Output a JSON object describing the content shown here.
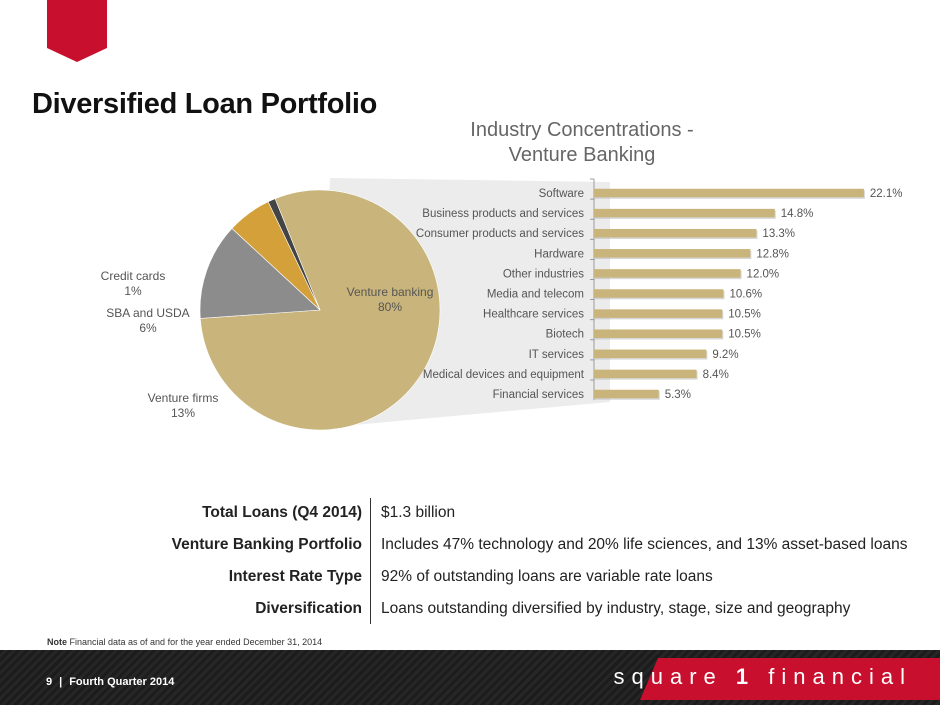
{
  "page": {
    "title": "Diversified Loan Portfolio",
    "accent_color": "#c8102e"
  },
  "chart_data": [
    {
      "type": "pie",
      "title": "",
      "slices": [
        {
          "name": "Venture banking",
          "label": "80%",
          "value": 80,
          "color": "#c9b57b"
        },
        {
          "name": "Venture firms",
          "label": "13%",
          "value": 13,
          "color": "#8c8c8c"
        },
        {
          "name": "SBA and USDA",
          "label": "6%",
          "value": 6,
          "color": "#d4a03a"
        },
        {
          "name": "Credit cards",
          "label": "1%",
          "value": 1,
          "color": "#444444"
        }
      ]
    },
    {
      "type": "bar",
      "orientation": "horizontal",
      "title_line1": "Industry Concentrations -",
      "title_line2": "Venture Banking",
      "categories": [
        "Software",
        "Business products and services",
        "Consumer products and services",
        "Hardware",
        "Other industries",
        "Media and telecom",
        "Healthcare services",
        "Biotech",
        "IT services",
        "Medical devices and equipment",
        "Financial services"
      ],
      "values": [
        22.1,
        14.8,
        13.3,
        12.8,
        12.0,
        10.6,
        10.5,
        10.5,
        9.2,
        8.4,
        5.3
      ],
      "value_labels": [
        "22.1%",
        "14.8%",
        "13.3%",
        "12.8%",
        "12.0%",
        "10.6%",
        "10.5%",
        "10.5%",
        "9.2%",
        "8.4%",
        "5.3%"
      ],
      "xlim": [
        0,
        23
      ],
      "bar_color": "#c9b57b",
      "grid": false
    }
  ],
  "details": [
    {
      "label": "Total Loans (Q4 2014)",
      "value": "$1.3 billion"
    },
    {
      "label": "Venture Banking Portfolio",
      "value": "Includes 47% technology and 20% life sciences, and 13% asset-based loans"
    },
    {
      "label": "Interest Rate Type",
      "value": "92% of outstanding loans are variable rate loans"
    },
    {
      "label": "Diversification",
      "value": "Loans outstanding diversified by industry, stage, size and geography"
    }
  ],
  "footnote": {
    "prefix": "Note",
    "text": " Financial data as of and for the year ended December 31, 2014"
  },
  "footer": {
    "page_number": "9",
    "separator": "|",
    "period": "Fourth Quarter 2014",
    "brand_pre": "square ",
    "brand_num": "1",
    "brand_post": " financial"
  }
}
